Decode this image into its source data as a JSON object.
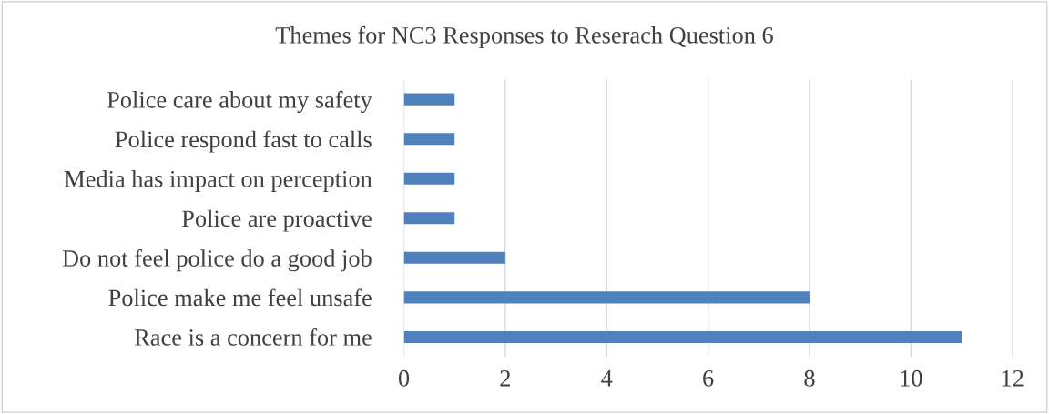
{
  "chart_data": {
    "type": "bar",
    "orientation": "horizontal",
    "title": "Themes for NC3 Responses to Reserach Question 6",
    "categories": [
      "Police care about my safety",
      "Police respond fast to calls",
      "Media has impact on perception",
      "Police are proactive",
      "Do not feel police do a good job",
      "Police make me feel unsafe",
      "Race is a concern for me"
    ],
    "values": [
      1,
      1,
      1,
      1,
      2,
      8,
      11
    ],
    "color": "#4f81bd",
    "xlim": [
      0,
      12
    ],
    "xticks": [
      0,
      2,
      4,
      6,
      8,
      10,
      12
    ],
    "grid": "x"
  }
}
